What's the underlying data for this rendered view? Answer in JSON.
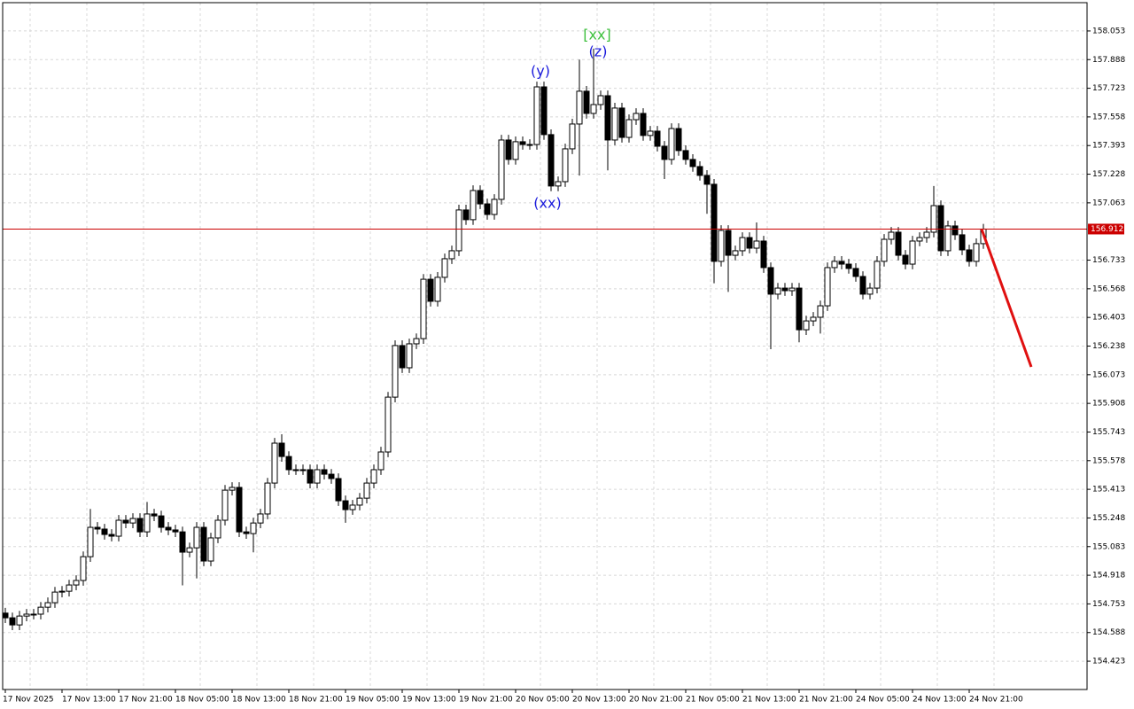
{
  "chart_data": {
    "type": "candlestick",
    "categories": [
      "17 Nov 2025",
      null,
      null,
      null,
      null,
      null,
      null,
      null,
      "17 Nov 13:00",
      null,
      null,
      null,
      null,
      null,
      null,
      null,
      "17 Nov 21:00",
      null,
      null,
      null,
      null,
      null,
      null,
      null,
      "18 Nov 05:00",
      null,
      null,
      null,
      null,
      null,
      null,
      null,
      "18 Nov 13:00",
      null,
      null,
      null,
      null,
      null,
      null,
      null,
      "18 Nov 21:00",
      null,
      null,
      null,
      null,
      null,
      null,
      null,
      "19 Nov 05:00",
      null,
      null,
      null,
      null,
      null,
      null,
      null,
      "19 Nov 13:00",
      null,
      null,
      null,
      null,
      null,
      null,
      null,
      "19 Nov 21:00",
      null,
      null,
      null,
      null,
      null,
      null,
      null,
      "20 Nov 05:00",
      null,
      null,
      null,
      null,
      null,
      null,
      null,
      "20 Nov 13:00",
      null,
      null,
      null,
      null,
      null,
      null,
      null,
      "20 Nov 21:00",
      null,
      null,
      null,
      null,
      null,
      null,
      null,
      "21 Nov 05:00",
      null,
      null,
      null,
      null,
      null,
      null,
      null,
      "21 Nov 13:00",
      null,
      null,
      null,
      null,
      null,
      null,
      null,
      "21 Nov 21:00",
      null,
      null,
      null,
      null,
      null,
      null,
      null,
      "24 Nov 05:00",
      null,
      null,
      null,
      null,
      null,
      null,
      null,
      "24 Nov 13:00",
      null,
      null,
      null,
      null,
      null,
      null,
      null,
      "24 Nov 21:00",
      null,
      null
    ],
    "open": [
      154.7,
      154.673,
      154.632,
      154.683,
      154.694,
      154.694,
      154.734,
      154.76,
      154.821,
      154.826,
      154.862,
      154.888,
      155.025,
      155.194,
      155.184,
      155.153,
      155.143,
      155.235,
      155.219,
      155.245,
      155.168,
      155.271,
      155.26,
      155.194,
      155.179,
      155.168,
      155.051,
      155.076,
      155.194,
      155.0,
      155.133,
      155.235,
      155.408,
      155.424,
      155.168,
      155.158,
      155.219,
      155.271,
      155.449,
      155.679,
      155.602,
      155.526,
      155.526,
      155.526,
      155.449,
      155.526,
      155.5,
      155.475,
      155.347,
      155.296,
      155.322,
      155.362,
      155.449,
      155.526,
      155.628,
      155.944,
      156.241,
      156.113,
      156.251,
      156.281,
      156.623,
      156.496,
      156.634,
      156.741,
      156.787,
      157.022,
      156.966,
      157.134,
      157.057,
      156.996,
      157.083,
      157.425,
      157.313,
      157.415,
      157.399,
      157.399,
      157.731,
      157.456,
      157.16,
      157.185,
      157.374,
      157.517,
      157.706,
      157.578,
      157.629,
      157.68,
      157.425,
      157.609,
      157.44,
      157.542,
      157.578,
      157.451,
      157.476,
      157.389,
      157.313,
      157.491,
      157.364,
      157.313,
      157.272,
      157.221,
      157.17,
      156.726,
      156.904,
      156.761,
      156.787,
      156.863,
      156.802,
      156.843,
      156.69,
      156.537,
      156.572,
      156.557,
      156.572,
      156.332,
      156.383,
      156.404,
      156.47,
      156.69,
      156.726,
      156.71,
      156.685,
      156.639,
      156.537,
      156.572,
      156.726,
      156.853,
      156.894,
      156.761,
      156.71,
      156.843,
      156.863,
      156.894,
      157.047,
      156.787,
      156.93,
      156.879,
      156.792,
      156.726,
      156.828
    ],
    "high": [
      154.73,
      154.703,
      154.713,
      154.724,
      154.724,
      154.764,
      154.79,
      154.851,
      154.856,
      154.892,
      154.918,
      155.055,
      155.3,
      155.224,
      155.214,
      155.183,
      155.265,
      155.265,
      155.275,
      155.275,
      155.34,
      155.301,
      155.29,
      155.224,
      155.209,
      155.198,
      155.106,
      155.224,
      155.224,
      155.163,
      155.265,
      155.438,
      155.454,
      155.454,
      155.198,
      155.249,
      155.301,
      155.479,
      155.709,
      155.73,
      155.632,
      155.556,
      155.556,
      155.556,
      155.556,
      155.556,
      155.53,
      155.505,
      155.377,
      155.352,
      155.392,
      155.479,
      155.556,
      155.658,
      155.974,
      156.271,
      156.271,
      156.281,
      156.311,
      156.653,
      156.653,
      156.664,
      156.771,
      156.817,
      157.052,
      157.052,
      157.164,
      157.164,
      157.087,
      157.113,
      157.455,
      157.455,
      157.445,
      157.445,
      157.429,
      157.761,
      157.761,
      157.486,
      157.215,
      157.404,
      157.547,
      157.888,
      157.736,
      157.951,
      157.71,
      157.71,
      157.639,
      157.639,
      157.572,
      157.608,
      157.608,
      157.506,
      157.506,
      157.419,
      157.521,
      157.521,
      157.394,
      157.343,
      157.302,
      157.251,
      157.2,
      156.934,
      156.934,
      156.817,
      156.893,
      156.893,
      156.95,
      156.873,
      156.72,
      156.602,
      156.602,
      156.602,
      156.602,
      156.413,
      156.434,
      156.5,
      156.72,
      156.756,
      156.756,
      156.74,
      156.715,
      156.669,
      156.602,
      156.756,
      156.883,
      156.924,
      156.924,
      156.791,
      156.873,
      156.893,
      156.924,
      157.16,
      157.077,
      156.96,
      156.96,
      156.909,
      156.822,
      156.858,
      156.942
    ],
    "low": [
      154.643,
      154.602,
      154.602,
      154.653,
      154.664,
      154.664,
      154.704,
      154.73,
      154.791,
      154.796,
      154.832,
      154.858,
      154.995,
      155.154,
      155.123,
      155.113,
      155.113,
      155.189,
      155.189,
      155.138,
      155.138,
      155.23,
      155.164,
      155.149,
      155.138,
      154.86,
      155.021,
      154.9,
      154.97,
      154.97,
      155.103,
      155.205,
      155.378,
      155.138,
      155.128,
      155.05,
      155.189,
      155.241,
      155.419,
      155.572,
      155.496,
      155.496,
      155.496,
      155.419,
      155.419,
      155.47,
      155.445,
      155.317,
      155.22,
      155.266,
      155.292,
      155.332,
      155.419,
      155.496,
      155.598,
      155.914,
      156.083,
      156.083,
      156.221,
      156.251,
      156.466,
      156.466,
      156.604,
      156.711,
      156.757,
      156.936,
      156.936,
      157.027,
      156.966,
      156.966,
      157.053,
      157.283,
      157.283,
      157.369,
      157.369,
      157.369,
      157.426,
      157.13,
      157.13,
      157.155,
      157.344,
      157.22,
      157.548,
      157.548,
      157.599,
      157.25,
      157.395,
      157.41,
      157.41,
      157.512,
      157.421,
      157.421,
      157.359,
      157.2,
      157.283,
      157.334,
      157.283,
      157.242,
      157.191,
      157.0,
      156.6,
      156.696,
      156.55,
      156.731,
      156.757,
      156.772,
      156.772,
      156.66,
      156.22,
      156.507,
      156.527,
      156.527,
      156.26,
      156.302,
      156.353,
      156.31,
      156.44,
      156.66,
      156.68,
      156.655,
      156.609,
      156.507,
      156.507,
      156.542,
      156.696,
      156.823,
      156.731,
      156.68,
      156.68,
      156.813,
      156.833,
      156.864,
      156.757,
      156.757,
      156.849,
      156.762,
      156.696,
      156.696,
      156.798
    ],
    "close": [
      154.673,
      154.632,
      154.683,
      154.694,
      154.694,
      154.734,
      154.76,
      154.821,
      154.826,
      154.862,
      154.888,
      155.025,
      155.194,
      155.184,
      155.153,
      155.143,
      155.235,
      155.219,
      155.245,
      155.168,
      155.271,
      155.26,
      155.194,
      155.179,
      155.168,
      155.051,
      155.076,
      155.194,
      155.0,
      155.133,
      155.235,
      155.408,
      155.424,
      155.168,
      155.158,
      155.219,
      155.271,
      155.449,
      155.679,
      155.602,
      155.526,
      155.526,
      155.526,
      155.449,
      155.526,
      155.5,
      155.475,
      155.347,
      155.296,
      155.322,
      155.362,
      155.449,
      155.526,
      155.628,
      155.944,
      156.241,
      156.113,
      156.251,
      156.281,
      156.623,
      156.496,
      156.634,
      156.741,
      156.787,
      157.022,
      156.966,
      157.134,
      157.057,
      156.996,
      157.083,
      157.425,
      157.313,
      157.415,
      157.399,
      157.399,
      157.731,
      157.456,
      157.16,
      157.185,
      157.374,
      157.517,
      157.706,
      157.578,
      157.629,
      157.68,
      157.425,
      157.609,
      157.44,
      157.542,
      157.578,
      157.451,
      157.476,
      157.389,
      157.313,
      157.491,
      157.364,
      157.313,
      157.272,
      157.221,
      157.17,
      156.726,
      156.904,
      156.761,
      156.787,
      156.863,
      156.802,
      156.843,
      156.69,
      156.537,
      156.572,
      156.557,
      156.572,
      156.332,
      156.383,
      156.404,
      156.47,
      156.69,
      156.726,
      156.71,
      156.685,
      156.639,
      156.537,
      156.572,
      156.726,
      156.853,
      156.894,
      156.761,
      156.71,
      156.843,
      156.863,
      156.894,
      157.047,
      156.787,
      156.93,
      156.879,
      156.792,
      156.726,
      156.828,
      156.912
    ],
    "up_color": "#ffffff",
    "down_color": "#000000",
    "outline_color": "#000000",
    "ylim": [
      154.26,
      158.216
    ],
    "yticks": [
      158.053,
      157.888,
      157.723,
      157.558,
      157.393,
      157.228,
      157.063,
      156.733,
      156.568,
      156.403,
      156.238,
      156.073,
      155.908,
      155.743,
      155.578,
      155.413,
      155.248,
      155.083,
      154.918,
      154.753,
      154.588,
      154.423
    ],
    "grid": true,
    "price_line": {
      "value": 156.912,
      "color": "#cc0000"
    },
    "forecast": {
      "values": [
        156.912,
        156.118
      ],
      "color": "#e01010"
    },
    "annotations": [
      {
        "text": "(y)",
        "color": "#1a1adc"
      },
      {
        "text": "[xx]",
        "color": "#3cbf3c"
      },
      {
        "text": "(z)",
        "color": "#1a1adc"
      },
      {
        "text": "(xx)",
        "color": "#1a1adc"
      }
    ]
  }
}
